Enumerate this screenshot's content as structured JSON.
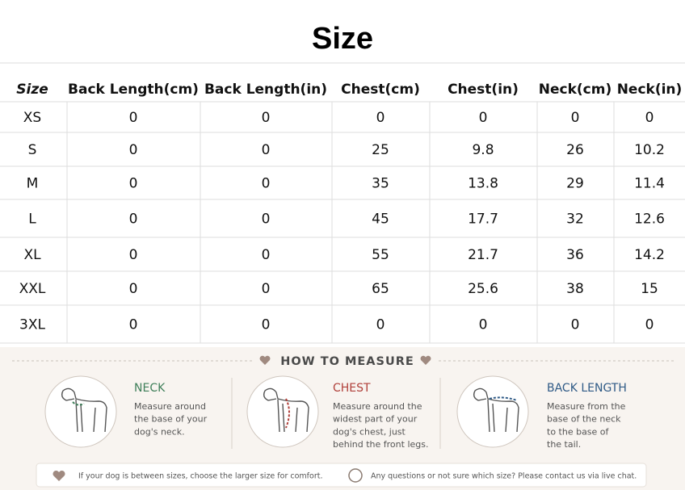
{
  "title": "Size",
  "table": {
    "header": [
      "Size",
      "Back Length(cm)",
      "Back Length(in)",
      "Chest(cm)",
      "Chest(in)",
      "Neck(cm)",
      "Neck(in)"
    ],
    "rows": [
      [
        "XS",
        "0",
        "0",
        "0",
        "0",
        "0",
        "0"
      ],
      [
        "S",
        "0",
        "0",
        "25",
        "9.8",
        "26",
        "10.2"
      ],
      [
        "M",
        "0",
        "0",
        "35",
        "13.8",
        "29",
        "11.4"
      ],
      [
        "L",
        "0",
        "0",
        "45",
        "17.7",
        "32",
        "12.6"
      ],
      [
        "XL",
        "0",
        "0",
        "55",
        "21.7",
        "36",
        "14.2"
      ],
      [
        "XXL",
        "0",
        "0",
        "65",
        "25.6",
        "38",
        "15"
      ],
      [
        "3XL",
        "0",
        "0",
        "0",
        "0",
        "0",
        "0"
      ]
    ]
  },
  "measure": {
    "title": "HOW TO MEASURE",
    "items": [
      {
        "heading": "NECK",
        "lines": [
          "Measure around",
          "the base of your",
          "dog's neck."
        ]
      },
      {
        "heading": "CHEST",
        "lines": [
          "Measure around the",
          "widest part of your",
          "dog's chest, just",
          "behind the front legs."
        ]
      },
      {
        "heading": "BACK LENGTH",
        "lines": [
          "Measure from the",
          "base of the neck",
          "to the base of",
          "the tail."
        ]
      }
    ]
  },
  "footer": [
    "If your dog is between sizes, choose the larger size for comfort.",
    "Any questions or not sure which size? Please contact us via live chat."
  ]
}
